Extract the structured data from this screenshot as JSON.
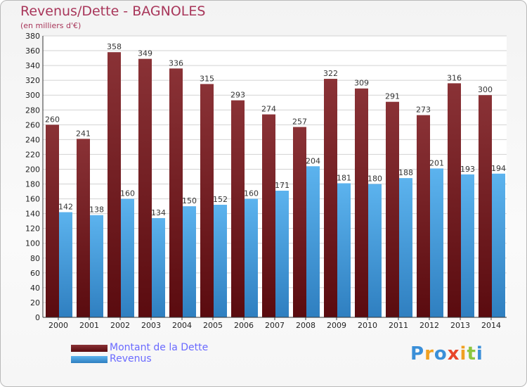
{
  "title": "Revenus/Dette - BAGNOLES",
  "subtitle": "(en milliers d'€)",
  "logo": "Proxiti",
  "colors": {
    "dette": "#7a2226",
    "revenus": "#4aa3e3",
    "title": "#a8365a",
    "legend_text": "#6a6aff"
  },
  "chart_data": {
    "type": "bar",
    "title": "Revenus/Dette - BAGNOLES",
    "ylabel": "(en milliers d'€)",
    "categories": [
      "2000",
      "2001",
      "2002",
      "2003",
      "2004",
      "2005",
      "2006",
      "2007",
      "2008",
      "2009",
      "2010",
      "2011",
      "2012",
      "2013",
      "2014"
    ],
    "series": [
      {
        "name": "Montant de la Dette",
        "values": [
          260,
          241,
          358,
          349,
          336,
          315,
          293,
          274,
          257,
          322,
          309,
          291,
          273,
          316,
          300
        ]
      },
      {
        "name": "Revenus",
        "values": [
          142,
          138,
          160,
          134,
          150,
          152,
          160,
          171,
          204,
          181,
          180,
          188,
          201,
          193,
          194
        ]
      }
    ],
    "ylim": [
      0,
      380
    ],
    "yticks": [
      0,
      20,
      40,
      60,
      80,
      100,
      120,
      140,
      160,
      180,
      200,
      220,
      240,
      260,
      280,
      300,
      320,
      340,
      360,
      380
    ],
    "grid": true,
    "legend": "bottom-left"
  }
}
